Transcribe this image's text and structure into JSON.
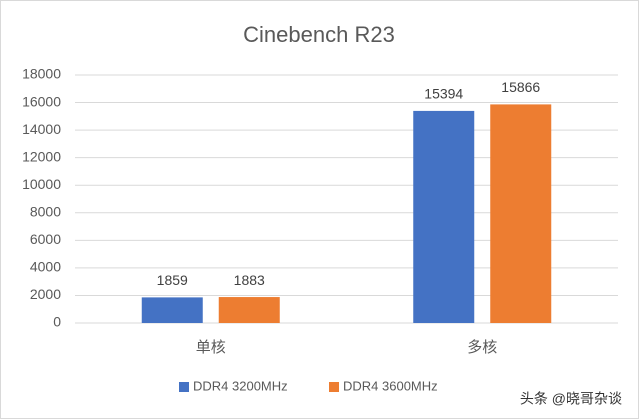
{
  "chart_data": {
    "type": "bar",
    "title": "Cinebench R23",
    "categories": [
      "单核",
      "多核"
    ],
    "series": [
      {
        "name": "DDR4 3200MHz",
        "color": "#4472c4",
        "values": [
          1859,
          15394
        ]
      },
      {
        "name": "DDR4 3600MHz",
        "color": "#ed7d31",
        "values": [
          1883,
          15866
        ]
      }
    ],
    "ylim": [
      0,
      18000
    ],
    "yticks": [
      0,
      2000,
      4000,
      6000,
      8000,
      10000,
      12000,
      14000,
      16000,
      18000
    ],
    "grid": true,
    "legend": "bottom",
    "data_labels": true,
    "watermark": "头条 @晓哥杂谈"
  }
}
